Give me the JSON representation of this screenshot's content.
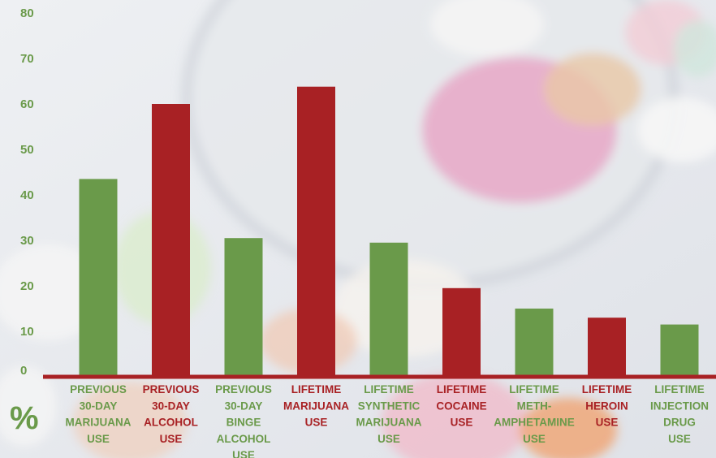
{
  "chart_data": {
    "type": "bar",
    "ylabel": "%",
    "ylim": [
      0,
      80
    ],
    "yticks": [
      "80",
      "70",
      "60",
      "50",
      "40",
      "30",
      "20",
      "10",
      "0"
    ],
    "categories": [
      [
        "PREVIOUS",
        "30-DAY",
        "MARIJUANA",
        "USE"
      ],
      [
        "PREVIOUS",
        "30-DAY",
        "ALCOHOL",
        "USE"
      ],
      [
        "PREVIOUS",
        "30-DAY",
        "BINGE",
        "ALCOHOL",
        "USE"
      ],
      [
        "LIFETIME",
        "MARIJUANA",
        "USE"
      ],
      [
        "LIFETIME",
        "SYNTHETIC",
        "MARIJUANA",
        "USE"
      ],
      [
        "LIFETIME",
        "COCAINE",
        "USE"
      ],
      [
        "LIFETIME",
        "METH-",
        "AMPHETAMINE",
        "USE"
      ],
      [
        "LIFETIME",
        "HEROIN",
        "USE"
      ],
      [
        "LIFETIME",
        "INJECTION",
        "DRUG",
        "USE"
      ]
    ],
    "values": [
      43.5,
      60,
      30.5,
      63.8,
      29.5,
      19.5,
      15,
      13,
      11.5
    ],
    "bar_colors": [
      "#6a9a4a",
      "#a82124",
      "#6a9a4a",
      "#a82124",
      "#6a9a4a",
      "#a82124",
      "#6a9a4a",
      "#a82124",
      "#6a9a4a"
    ],
    "label_colors": [
      "#6a9a4a",
      "#a82124",
      "#6a9a4a",
      "#a82124",
      "#6a9a4a",
      "#a82124",
      "#6a9a4a",
      "#a82124",
      "#6a9a4a"
    ],
    "axis_color": "#a82124",
    "tick_color": "#6a9a4a",
    "grid": false
  },
  "background": "pills-photo"
}
